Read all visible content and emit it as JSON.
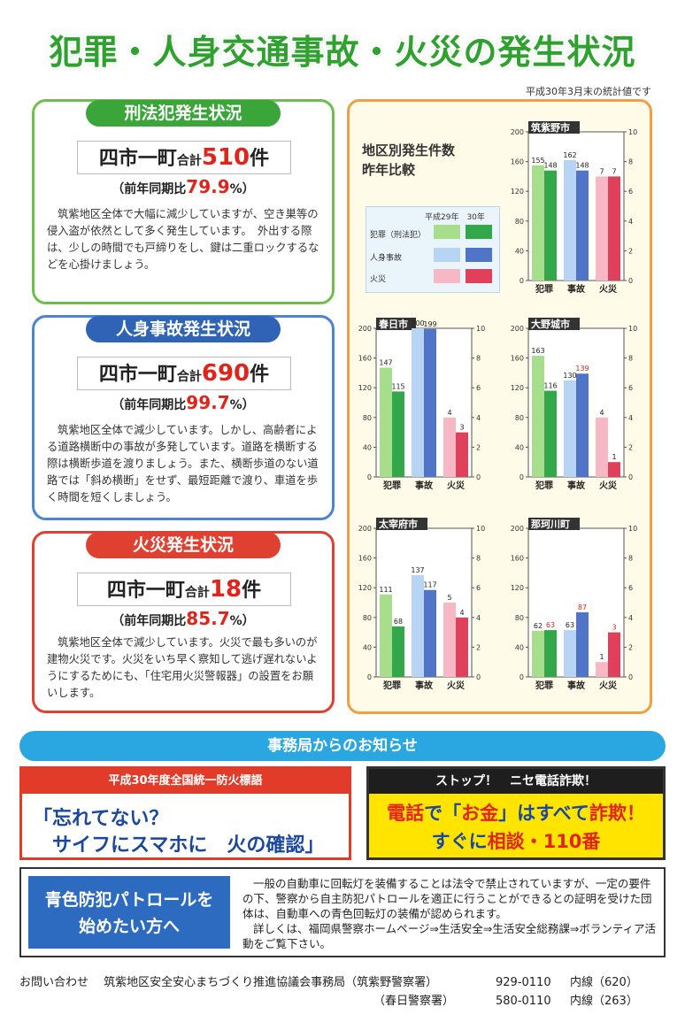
{
  "main_title": "犯罪・人身交通事故・火災の発生状況",
  "stats_note": "平成30年3月末の統計値です",
  "panels": {
    "crime": {
      "title": "刑法犯発生状況",
      "area": "四市一町",
      "total_label": "合計",
      "count": "510",
      "unit": "件",
      "ratio_label": "（前年同期比",
      "ratio_value": "79.9",
      "ratio_suffix": "%）",
      "body": "筑紫地区全体で大幅に減少していますが、空き巣等の侵入盗が依然として多く発生しています。　外出する際は、少しの時間でも戸締りをし、鍵は二重ロックするなどを心掛けましょう。",
      "color": "#3aa63a"
    },
    "traffic": {
      "title": "人身事故発生状況",
      "area": "四市一町",
      "total_label": "合計",
      "count": "690",
      "unit": "件",
      "ratio_label": "（前年同期比",
      "ratio_value": "99.7",
      "ratio_suffix": "%）",
      "body": "筑紫地区全体で減少しています。しかし、高齢者による道路横断中の事故が多発しています。道路を横断する際は横断歩道を渡りましょう。また、横断歩道のない道路では「斜め横断」をせず、最短距離で渡り、車道を歩く時間を短くしましょう。",
      "color": "#2e63b5"
    },
    "fire": {
      "title": "火災発生状況",
      "area": "四市一町",
      "total_label": "合計",
      "count": "18",
      "unit": "件",
      "ratio_label": "（前年同期比",
      "ratio_value": "85.7",
      "ratio_suffix": "%）",
      "body": "筑紫地区全体で減少しています。火災で最も多いのが建物火災です。火災をいち早く察知して逃げ遅れないようにするためにも、「住宅用火災警報器」の設置をお願いします。",
      "color": "#e0402f"
    }
  },
  "chart_legend": {
    "title_line1": "地区別発生件数",
    "title_line2": "昨年比較",
    "years_label": "平成29年　30年",
    "rows": [
      "犯罪（刑法犯）",
      "人身事故",
      "火災"
    ]
  },
  "chart_data": [
    {
      "type": "bar",
      "title": "筑紫野市",
      "categories": [
        "犯罪",
        "事故",
        "火災"
      ],
      "series": [
        {
          "values": [
            155,
            162,
            7
          ]
        },
        {
          "values": [
            148,
            148,
            7
          ]
        }
      ],
      "ylim_left": [
        0,
        200
      ],
      "ylim_right": [
        0,
        10
      ],
      "left_ticks": [
        "0",
        "40",
        "80",
        "120",
        "160",
        "200"
      ],
      "right_ticks": [
        "0",
        "2",
        "4",
        "6",
        "8",
        "10"
      ],
      "labels": [
        [
          "155",
          "148"
        ],
        [
          "162",
          "148"
        ],
        [
          "7",
          "7"
        ]
      ],
      "red_labels": []
    },
    {
      "type": "bar",
      "title": "春日市",
      "categories": [
        "犯罪",
        "事故",
        "火災"
      ],
      "series": [
        {
          "values": [
            147,
            200,
            4
          ]
        },
        {
          "values": [
            115,
            199,
            3
          ]
        }
      ],
      "ylim_left": [
        0,
        200
      ],
      "ylim_right": [
        0,
        10
      ],
      "left_ticks": [
        "0",
        "40",
        "80",
        "120",
        "160",
        "200"
      ],
      "right_ticks": [
        "0",
        "2",
        "4",
        "6",
        "8",
        "10"
      ],
      "labels": [
        [
          "147",
          "115"
        ],
        [
          "200",
          "199"
        ],
        [
          "4",
          "3"
        ]
      ],
      "red_labels": []
    },
    {
      "type": "bar",
      "title": "大野城市",
      "categories": [
        "犯罪",
        "事故",
        "火災"
      ],
      "series": [
        {
          "values": [
            163,
            130,
            4
          ]
        },
        {
          "values": [
            116,
            139,
            1
          ]
        }
      ],
      "ylim_left": [
        0,
        200
      ],
      "ylim_right": [
        0,
        10
      ],
      "left_ticks": [
        "0",
        "40",
        "80",
        "120",
        "160",
        "200"
      ],
      "right_ticks": [
        "0",
        "2",
        "4",
        "6",
        "8",
        "10"
      ],
      "labels": [
        [
          "163",
          "116"
        ],
        [
          "130",
          "139"
        ],
        [
          "4",
          "1"
        ]
      ],
      "red_labels": [
        [
          1,
          1
        ]
      ]
    },
    {
      "type": "bar",
      "title": "太宰府市",
      "categories": [
        "犯罪",
        "事故",
        "火災"
      ],
      "series": [
        {
          "values": [
            111,
            137,
            5
          ]
        },
        {
          "values": [
            68,
            117,
            4
          ]
        }
      ],
      "ylim_left": [
        0,
        200
      ],
      "ylim_right": [
        0,
        10
      ],
      "left_ticks": [
        "0",
        "40",
        "80",
        "120",
        "160",
        "200"
      ],
      "right_ticks": [
        "0",
        "2",
        "4",
        "6",
        "8",
        "10"
      ],
      "labels": [
        [
          "111",
          "68"
        ],
        [
          "137",
          "117"
        ],
        [
          "5",
          "4"
        ]
      ],
      "red_labels": []
    },
    {
      "type": "bar",
      "title": "那珂川町",
      "categories": [
        "犯罪",
        "事故",
        "火災"
      ],
      "series": [
        {
          "values": [
            62,
            63,
            1
          ]
        },
        {
          "values": [
            63,
            87,
            3
          ]
        }
      ],
      "ylim_left": [
        0,
        200
      ],
      "ylim_right": [
        0,
        10
      ],
      "left_ticks": [
        "0",
        "40",
        "80",
        "120",
        "160",
        "200"
      ],
      "right_ticks": [
        "0",
        "2",
        "4",
        "6",
        "8",
        "10"
      ],
      "labels": [
        [
          "62",
          "63"
        ],
        [
          "63",
          "87"
        ],
        [
          "1",
          "3"
        ]
      ],
      "red_labels": [
        [
          0,
          1
        ],
        [
          1,
          1
        ],
        [
          2,
          1
        ]
      ]
    }
  ],
  "colors": {
    "crime_light": "#a6de8c",
    "crime_dark": "#33a84a",
    "traffic_light": "#b8d4f5",
    "traffic_dark": "#4f74c8",
    "fire_light": "#f5b8c4",
    "fire_dark": "#e0405a",
    "highlight_red": "#e2231a"
  },
  "notice": {
    "bar": "事務局からのお知らせ",
    "fire_header": "平成30年度全国統一防火標語",
    "fire_line1": "「忘れてない？",
    "fire_line2": "サイフにスマホに　火の確認」",
    "fraud_header": "ストップ！　ニセ電話詐欺！",
    "fraud_l1_a": "電話",
    "fraud_l1_b": "で「",
    "fraud_l1_c": "お金",
    "fraud_l1_d": "」はすべて",
    "fraud_l1_e": "詐欺！",
    "fraud_l2_a": "すぐに",
    "fraud_l2_b": "相談・110番",
    "patrol_button_line1": "青色防犯パトロールを",
    "patrol_button_line2": "始めたい方へ",
    "patrol_text1": "一般の自動車に回転灯を装備することは法令で禁止されていますが、一定の要件の下、警察から自主防犯パトロールを適正に行うことができるとの証明を受けた団体は、自動車への青色回転灯の装備が認められます。",
    "patrol_text2": "詳しくは、福岡県警察ホームページ⇒生活安全⇒生活安全総務課⇒ボランティア活動をご覧下さい。"
  },
  "contact": {
    "label": "お問い合わせ",
    "org": "筑紫地区安全安心まちづくり推進協議会事務局（筑紫野警察署）",
    "tel1": "929-0110",
    "ext1": "内線（620）",
    "station2": "（春日警察署）",
    "tel2": "580-0110",
    "ext2": "内線（263）"
  }
}
